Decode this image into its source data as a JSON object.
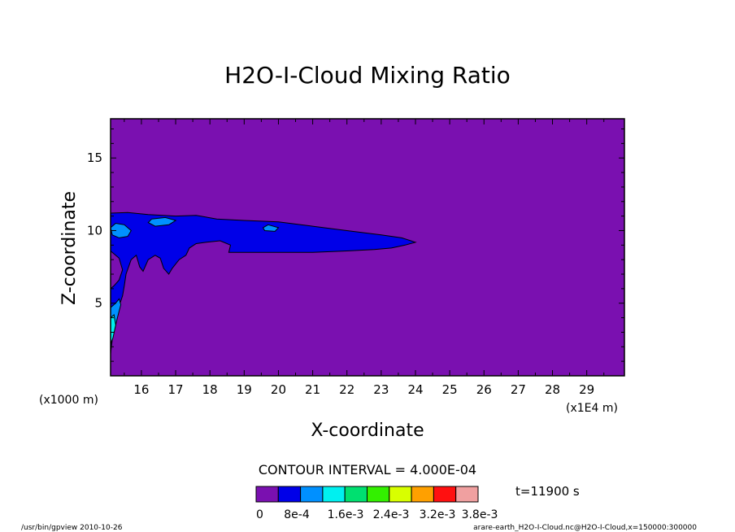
{
  "chart_data": {
    "type": "heatmap",
    "title": "H2O-I-Cloud Mixing Ratio",
    "xlabel": "X-coordinate",
    "ylabel": "Z-coordinate",
    "x_unit_note": "(x1E4 m)",
    "y_unit_note": "(x1000 m)",
    "xlim": [
      15.1,
      30.1
    ],
    "ylim": [
      0,
      17.7
    ],
    "x_ticks": [
      16,
      17,
      18,
      19,
      20,
      21,
      22,
      23,
      24,
      25,
      26,
      27,
      28,
      29
    ],
    "y_ticks": [
      5,
      10,
      15
    ],
    "contour_interval_text": "CONTOUR INTERVAL = 4.000E-04",
    "time_text": "t=11900 s",
    "levels": [
      0,
      0.0004,
      0.0008,
      0.0012,
      0.0016,
      0.002,
      0.0024,
      0.0028,
      0.0032,
      0.0036
    ],
    "colors": [
      "#7a10b0",
      "#0000e8",
      "#0090ff",
      "#00f0f0",
      "#00e070",
      "#33f000",
      "#d8ff00",
      "#ffa000",
      "#ff1010",
      "#f0a0a0"
    ],
    "colorbar_labels": [
      "0",
      "8e-4",
      "1.6e-3",
      "2.4e-3",
      "3.2e-3",
      "3.8e-3"
    ],
    "regions": [
      {
        "level": 1,
        "points": [
          [
            15.1,
            11.2
          ],
          [
            15.6,
            11.25
          ],
          [
            16.2,
            11.1
          ],
          [
            17.0,
            11.0
          ],
          [
            17.6,
            11.05
          ],
          [
            18.2,
            10.8
          ],
          [
            19.0,
            10.7
          ],
          [
            20.0,
            10.6
          ],
          [
            21.0,
            10.3
          ],
          [
            22.0,
            10.0
          ],
          [
            23.0,
            9.7
          ],
          [
            23.6,
            9.5
          ],
          [
            24.0,
            9.2
          ],
          [
            23.7,
            9.0
          ],
          [
            23.3,
            8.8
          ],
          [
            22.8,
            8.7
          ],
          [
            22.0,
            8.6
          ],
          [
            21.0,
            8.5
          ],
          [
            20.0,
            8.5
          ],
          [
            19.0,
            8.5
          ],
          [
            18.55,
            8.5
          ],
          [
            18.6,
            9.0
          ],
          [
            18.3,
            9.3
          ],
          [
            17.9,
            9.2
          ],
          [
            17.6,
            9.1
          ],
          [
            17.4,
            8.8
          ],
          [
            17.3,
            8.3
          ],
          [
            17.1,
            8.0
          ],
          [
            16.9,
            7.4
          ],
          [
            16.8,
            7.0
          ],
          [
            16.65,
            7.4
          ],
          [
            16.55,
            8.1
          ],
          [
            16.4,
            8.3
          ],
          [
            16.2,
            8.0
          ],
          [
            16.05,
            7.2
          ],
          [
            15.95,
            7.5
          ],
          [
            15.85,
            8.3
          ],
          [
            15.7,
            8.0
          ],
          [
            15.55,
            7.0
          ],
          [
            15.5,
            6.2
          ],
          [
            15.45,
            5.5
          ],
          [
            15.35,
            4.8
          ],
          [
            15.25,
            3.8
          ],
          [
            15.15,
            2.5
          ],
          [
            15.1,
            1.5
          ]
        ]
      },
      {
        "level": 0,
        "points": [
          [
            15.1,
            8.6
          ],
          [
            15.35,
            8.1
          ],
          [
            15.45,
            7.3
          ],
          [
            15.35,
            6.6
          ],
          [
            15.2,
            6.2
          ],
          [
            15.1,
            6.0
          ]
        ]
      },
      {
        "level": 2,
        "points": [
          [
            15.1,
            10.2
          ],
          [
            15.25,
            10.5
          ],
          [
            15.5,
            10.4
          ],
          [
            15.7,
            10.0
          ],
          [
            15.6,
            9.6
          ],
          [
            15.35,
            9.5
          ],
          [
            15.15,
            9.7
          ]
        ]
      },
      {
        "level": 2,
        "points": [
          [
            16.3,
            10.8
          ],
          [
            16.7,
            10.9
          ],
          [
            17.0,
            10.7
          ],
          [
            16.8,
            10.4
          ],
          [
            16.4,
            10.3
          ],
          [
            16.2,
            10.55
          ]
        ]
      },
      {
        "level": 2,
        "points": [
          [
            19.7,
            10.4
          ],
          [
            20.0,
            10.2
          ],
          [
            19.9,
            9.95
          ],
          [
            19.6,
            10.0
          ],
          [
            19.55,
            10.2
          ]
        ]
      },
      {
        "level": 2,
        "points": [
          [
            15.1,
            4.7
          ],
          [
            15.25,
            5.0
          ],
          [
            15.35,
            5.3
          ],
          [
            15.4,
            4.9
          ],
          [
            15.3,
            4.0
          ],
          [
            15.2,
            3.0
          ],
          [
            15.1,
            2.5
          ]
        ]
      },
      {
        "level": 3,
        "points": [
          [
            15.1,
            4.0
          ],
          [
            15.2,
            4.2
          ],
          [
            15.25,
            3.5
          ],
          [
            15.17,
            2.6
          ],
          [
            15.1,
            2.2
          ]
        ]
      }
    ]
  },
  "footer": {
    "left": "/usr/bin/gpview   2010-10-26",
    "right": "arare-earth_H2O-I-Cloud.nc@H2O-I-Cloud,x=150000:300000"
  }
}
